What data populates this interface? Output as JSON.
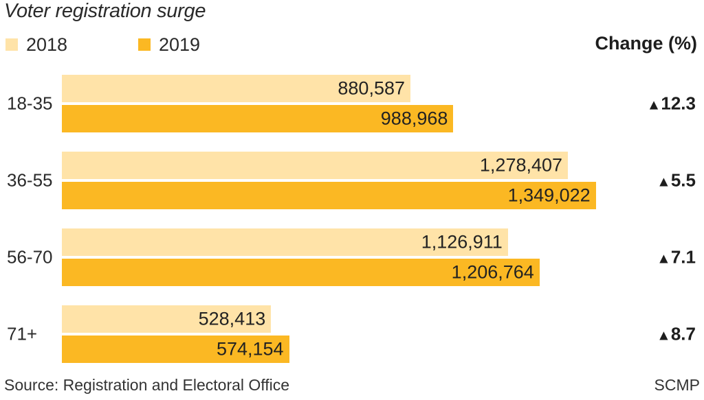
{
  "chart_data": {
    "type": "bar",
    "orientation": "horizontal",
    "title": "Voter registration surge",
    "categories": [
      "18-35",
      "36-55",
      "56-70",
      "71+"
    ],
    "series": [
      {
        "name": "2018",
        "color": "#FFE3A8",
        "values": [
          880587,
          1278407,
          1126911,
          528413
        ],
        "labels": [
          "880,587",
          "1,278,407",
          "1,126,911",
          "528,413"
        ]
      },
      {
        "name": "2019",
        "color": "#FBB823",
        "values": [
          988968,
          1349022,
          1206764,
          574154
        ],
        "labels": [
          "988,968",
          "1,349,022",
          "1,206,764",
          "574,154"
        ]
      }
    ],
    "change_header": "Change (%)",
    "changes": [
      {
        "direction": "up",
        "icon": "triangle-up-icon",
        "symbol": "▲",
        "value": "12.3"
      },
      {
        "direction": "up",
        "icon": "triangle-up-icon",
        "symbol": "▲",
        "value": "5.5"
      },
      {
        "direction": "up",
        "icon": "triangle-up-icon",
        "symbol": "▲",
        "value": "7.1"
      },
      {
        "direction": "up",
        "icon": "triangle-up-icon",
        "symbol": "▲",
        "value": "8.7"
      }
    ],
    "xlabel": "",
    "ylabel": "",
    "xlim": [
      0,
      1400000
    ],
    "grid": false,
    "legend_position": "top-left"
  },
  "footer": {
    "source": "Source: Registration and Electoral Office",
    "credit": "SCMP"
  }
}
